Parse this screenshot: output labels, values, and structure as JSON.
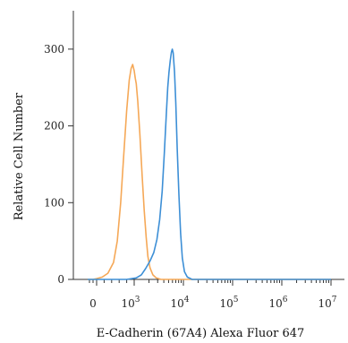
{
  "chart_data": {
    "type": "line",
    "title": "",
    "xlabel": "E-Cadherin (67A4) Alexa Fluor 647",
    "ylabel": "Relative Cell Number",
    "xscale": "biexponential",
    "xticks": [
      {
        "base": "0",
        "exp": ""
      },
      {
        "base": "10",
        "exp": "3"
      },
      {
        "base": "10",
        "exp": "4"
      },
      {
        "base": "10",
        "exp": "5"
      },
      {
        "base": "10",
        "exp": "6"
      },
      {
        "base": "10",
        "exp": "7"
      }
    ],
    "yticks": [
      "0",
      "100",
      "200",
      "300"
    ],
    "ylim": [
      0,
      350
    ],
    "grid": false,
    "legend": "none",
    "series": [
      {
        "color": "#f5a857",
        "points": [
          [
            -500,
            0
          ],
          [
            -200,
            0
          ],
          [
            0,
            1
          ],
          [
            150,
            3
          ],
          [
            300,
            8
          ],
          [
            450,
            22
          ],
          [
            550,
            50
          ],
          [
            640,
            100
          ],
          [
            720,
            160
          ],
          [
            800,
            220
          ],
          [
            870,
            260
          ],
          [
            920,
            275
          ],
          [
            960,
            280
          ],
          [
            1000,
            272
          ],
          [
            1050,
            262
          ],
          [
            1100,
            255
          ],
          [
            1180,
            232
          ],
          [
            1300,
            190
          ],
          [
            1450,
            135
          ],
          [
            1600,
            90
          ],
          [
            1750,
            55
          ],
          [
            1900,
            30
          ],
          [
            2100,
            15
          ],
          [
            2400,
            6
          ],
          [
            2800,
            2
          ],
          [
            3500,
            0
          ],
          [
            6000,
            0
          ],
          [
            10000000,
            0
          ]
        ]
      },
      {
        "color": "#3d8fd6",
        "points": [
          [
            -500,
            0
          ],
          [
            0,
            0
          ],
          [
            800,
            0
          ],
          [
            1100,
            2
          ],
          [
            1400,
            6
          ],
          [
            1700,
            14
          ],
          [
            2100,
            24
          ],
          [
            2500,
            35
          ],
          [
            2900,
            52
          ],
          [
            3300,
            78
          ],
          [
            3700,
            115
          ],
          [
            4100,
            165
          ],
          [
            4500,
            215
          ],
          [
            4800,
            250
          ],
          [
            5100,
            270
          ],
          [
            5400,
            285
          ],
          [
            5700,
            296
          ],
          [
            5950,
            300
          ],
          [
            6200,
            295
          ],
          [
            6600,
            270
          ],
          [
            7000,
            230
          ],
          [
            7500,
            170
          ],
          [
            8100,
            110
          ],
          [
            8800,
            60
          ],
          [
            9500,
            28
          ],
          [
            10500,
            10
          ],
          [
            12000,
            3
          ],
          [
            15000,
            0
          ],
          [
            10000000,
            0
          ]
        ]
      }
    ]
  }
}
